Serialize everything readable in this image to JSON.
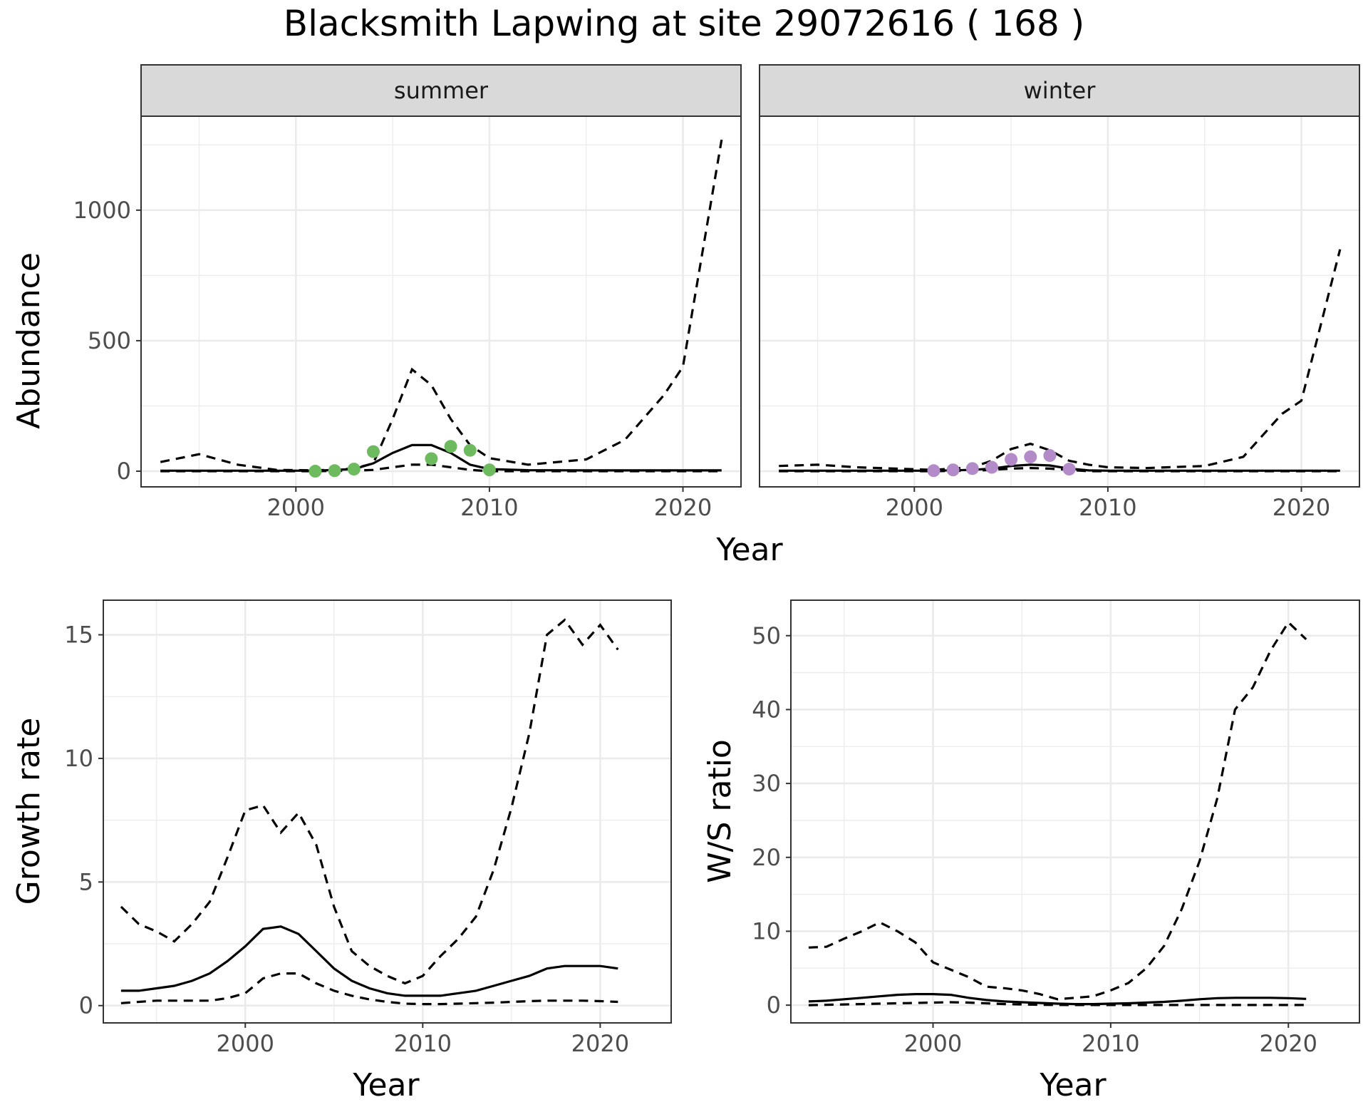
{
  "title": "Blacksmith Lapwing at site 29072616 ( 168 )",
  "colors": {
    "summer_points": "#6DBA5F",
    "winter_points": "#B38BC8",
    "line": "#000000",
    "strip_fill": "#D9D9D9",
    "grid": "#EBEBEB"
  },
  "chart_data": [
    {
      "id": "abundance",
      "type": "line",
      "ylabel": "Abundance",
      "xlabel": "Year",
      "xlim": [
        1992,
        2023
      ],
      "ylim": [
        -60,
        1360
      ],
      "xticks": [
        2000,
        2010,
        2020
      ],
      "yticks": [
        0,
        500,
        1000
      ],
      "facets": [
        {
          "label": "summer",
          "x": [
            1993,
            1995,
            1997,
            1999,
            2001,
            2003,
            2004,
            2005,
            2006,
            2007,
            2008,
            2009,
            2010,
            2012,
            2015,
            2017,
            2019,
            2020,
            2022
          ],
          "mean": [
            2,
            2,
            2,
            2,
            2,
            8,
            30,
            70,
            100,
            100,
            70,
            25,
            8,
            4,
            3,
            3,
            3,
            3,
            3
          ],
          "upper": [
            35,
            65,
            25,
            5,
            3,
            10,
            30,
            200,
            390,
            330,
            200,
            100,
            50,
            25,
            45,
            120,
            290,
            400,
            1270
          ],
          "lower": [
            0,
            0,
            0,
            0,
            0,
            2,
            5,
            15,
            25,
            25,
            15,
            5,
            0,
            0,
            0,
            0,
            0,
            0,
            0
          ],
          "points": {
            "x": [
              2001,
              2002,
              2003,
              2004,
              2007,
              2008,
              2009,
              2010
            ],
            "y": [
              0,
              2,
              8,
              75,
              48,
              95,
              80,
              5
            ]
          }
        },
        {
          "label": "winter",
          "x": [
            1993,
            1995,
            1997,
            1999,
            2001,
            2003,
            2004,
            2005,
            2006,
            2007,
            2008,
            2009,
            2010,
            2012,
            2015,
            2017,
            2019,
            2020,
            2022
          ],
          "mean": [
            2,
            2,
            2,
            2,
            2,
            5,
            10,
            20,
            25,
            22,
            10,
            3,
            2,
            2,
            2,
            2,
            2,
            2,
            2
          ],
          "upper": [
            20,
            25,
            15,
            10,
            5,
            15,
            40,
            85,
            105,
            80,
            40,
            25,
            15,
            12,
            20,
            55,
            220,
            270,
            850
          ],
          "lower": [
            0,
            0,
            0,
            0,
            0,
            2,
            5,
            10,
            12,
            10,
            5,
            0,
            0,
            0,
            0,
            0,
            0,
            0,
            0
          ],
          "points": {
            "x": [
              2001,
              2002,
              2003,
              2004,
              2005,
              2006,
              2007,
              2008
            ],
            "y": [
              2,
              5,
              10,
              15,
              45,
              55,
              60,
              8
            ]
          }
        }
      ]
    },
    {
      "id": "growth-rate",
      "type": "line",
      "ylabel": "Growth rate",
      "xlabel": "Year",
      "xlim": [
        1992,
        2024
      ],
      "ylim": [
        -0.7,
        16.4
      ],
      "xticks": [
        2000,
        2010,
        2020
      ],
      "yticks": [
        0,
        5,
        10,
        15
      ],
      "x": [
        1993,
        1994,
        1995,
        1996,
        1997,
        1998,
        1999,
        2000,
        2001,
        2002,
        2003,
        2004,
        2005,
        2006,
        2007,
        2008,
        2009,
        2010,
        2011,
        2012,
        2013,
        2014,
        2015,
        2016,
        2017,
        2018,
        2019,
        2020,
        2021
      ],
      "mean": [
        0.6,
        0.6,
        0.7,
        0.8,
        1.0,
        1.3,
        1.8,
        2.4,
        3.1,
        3.2,
        2.9,
        2.2,
        1.5,
        1.0,
        0.7,
        0.5,
        0.4,
        0.4,
        0.4,
        0.5,
        0.6,
        0.8,
        1.0,
        1.2,
        1.5,
        1.6,
        1.6,
        1.6,
        1.5
      ],
      "upper": [
        4.0,
        3.3,
        3.0,
        2.6,
        3.3,
        4.2,
        6.0,
        7.9,
        8.1,
        7.0,
        7.8,
        6.5,
        4.0,
        2.2,
        1.6,
        1.2,
        0.9,
        1.2,
        2.0,
        2.7,
        3.6,
        5.5,
        8.0,
        11.0,
        15.0,
        15.6,
        14.6,
        15.4,
        14.4
      ],
      "lower": [
        0.1,
        0.15,
        0.2,
        0.2,
        0.2,
        0.2,
        0.3,
        0.5,
        1.1,
        1.3,
        1.3,
        0.9,
        0.6,
        0.4,
        0.25,
        0.15,
        0.08,
        0.06,
        0.06,
        0.08,
        0.1,
        0.12,
        0.15,
        0.18,
        0.2,
        0.2,
        0.2,
        0.18,
        0.15
      ]
    },
    {
      "id": "ws-ratio",
      "type": "line",
      "ylabel": "W/S ratio",
      "xlabel": "Year",
      "xlim": [
        1992,
        2024
      ],
      "ylim": [
        -2.4,
        54.8
      ],
      "xticks": [
        2000,
        2010,
        2020
      ],
      "yticks": [
        0,
        10,
        20,
        30,
        40,
        50
      ],
      "x": [
        1993,
        1994,
        1995,
        1996,
        1997,
        1998,
        1999,
        2000,
        2001,
        2002,
        2003,
        2004,
        2005,
        2006,
        2007,
        2008,
        2009,
        2010,
        2011,
        2012,
        2013,
        2014,
        2015,
        2016,
        2017,
        2018,
        2019,
        2020,
        2021
      ],
      "mean": [
        0.5,
        0.6,
        0.8,
        1.0,
        1.2,
        1.4,
        1.5,
        1.5,
        1.4,
        1.0,
        0.7,
        0.5,
        0.4,
        0.3,
        0.2,
        0.15,
        0.15,
        0.2,
        0.25,
        0.35,
        0.45,
        0.6,
        0.8,
        0.95,
        1.0,
        1.0,
        1.0,
        0.95,
        0.85
      ],
      "upper": [
        7.8,
        7.9,
        9.0,
        10.0,
        11.2,
        10.0,
        8.5,
        5.8,
        4.8,
        3.8,
        2.5,
        2.3,
        2.0,
        1.5,
        0.8,
        1.0,
        1.2,
        2.0,
        3.0,
        5.0,
        8.0,
        13.0,
        19.5,
        28.0,
        40.0,
        43.0,
        48.0,
        51.8,
        49.5
      ],
      "lower": [
        0.0,
        0.05,
        0.1,
        0.15,
        0.2,
        0.25,
        0.3,
        0.35,
        0.4,
        0.35,
        0.25,
        0.15,
        0.1,
        0.05,
        0.03,
        0.02,
        0.02,
        0.02,
        0.02,
        0.02,
        0.02,
        0.02,
        0.02,
        0.02,
        0.02,
        0.02,
        0.02,
        0.02,
        0.02
      ]
    }
  ]
}
